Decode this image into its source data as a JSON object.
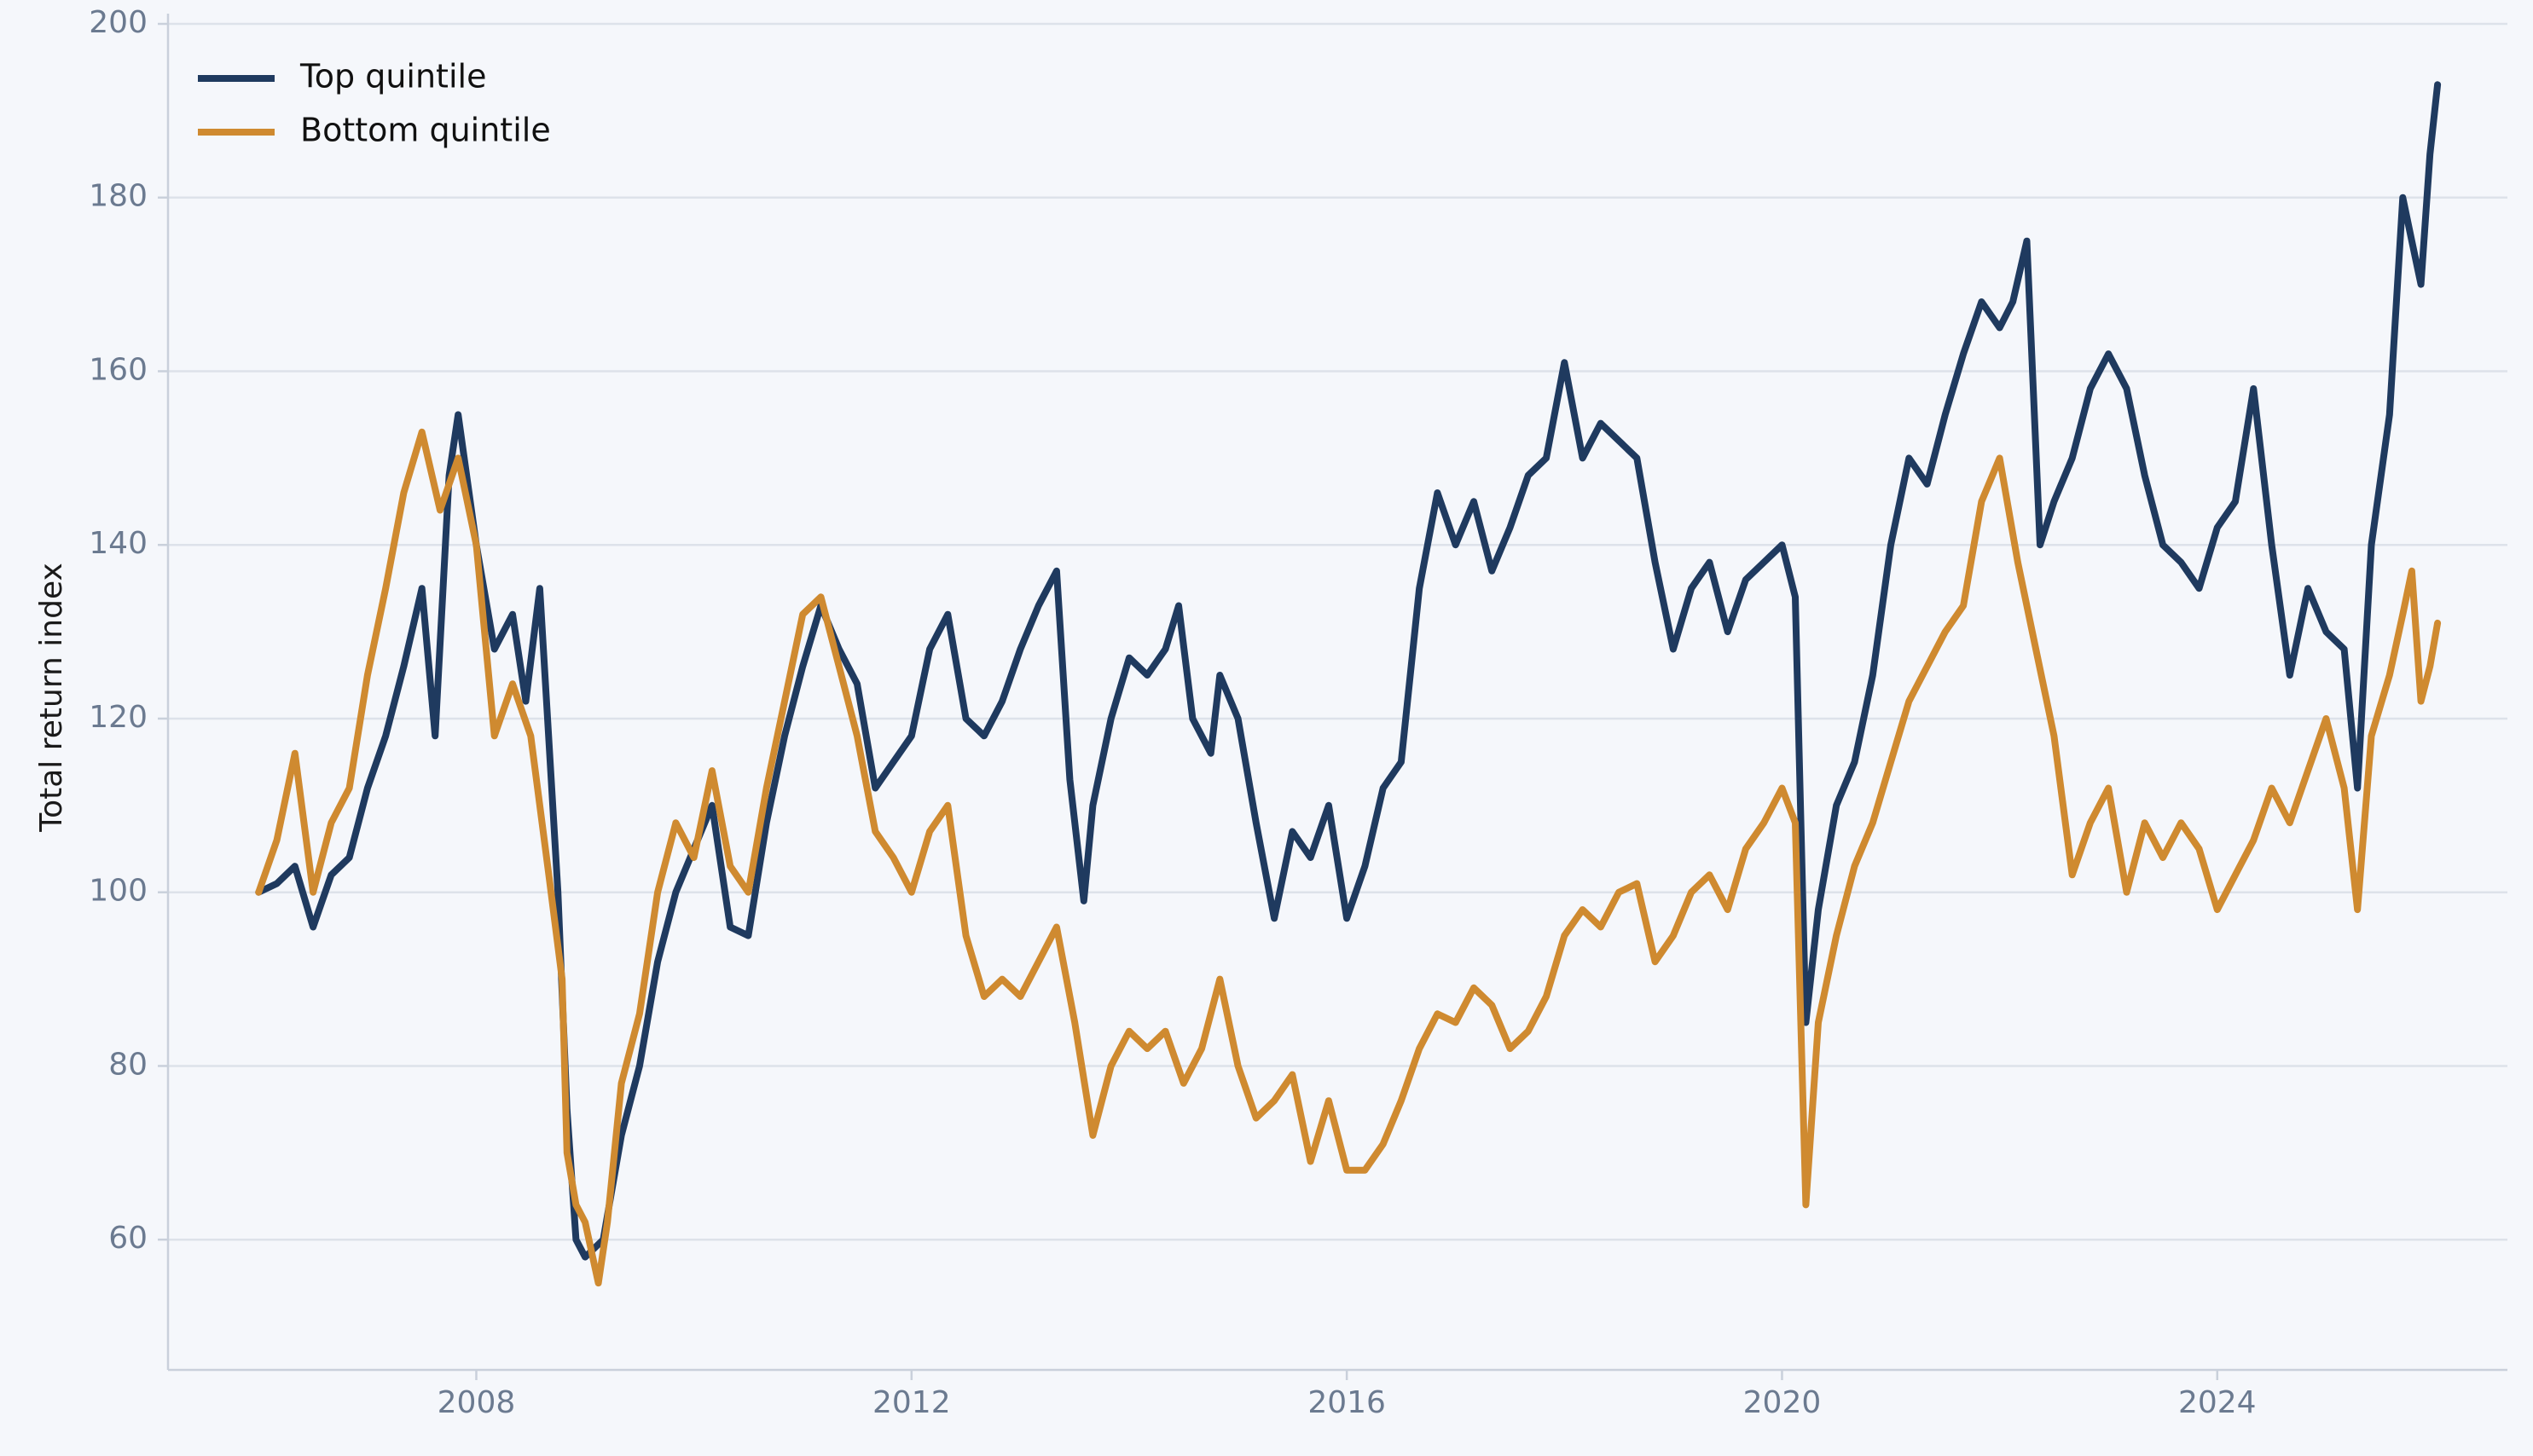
{
  "chart_data": {
    "type": "line",
    "title": "",
    "xlabel": "",
    "ylabel": "Total return index",
    "xlim": [
      "2005-03-01",
      "2026-09-01"
    ],
    "ylim": [
      45,
      200
    ],
    "x_ticks": [
      "2008",
      "2012",
      "2016",
      "2020",
      "2024"
    ],
    "y_ticks": [
      60,
      80,
      100,
      120,
      140,
      160,
      180,
      200
    ],
    "grid": "horizontal",
    "legend_position": "top-left",
    "series": [
      {
        "name": "Top quintile",
        "color": "#1f3a5f",
        "points": [
          [
            "2006-01-01",
            100
          ],
          [
            "2006-03-01",
            101
          ],
          [
            "2006-05-01",
            103
          ],
          [
            "2006-07-01",
            96
          ],
          [
            "2006-09-01",
            102
          ],
          [
            "2006-11-01",
            104
          ],
          [
            "2007-01-01",
            112
          ],
          [
            "2007-03-01",
            118
          ],
          [
            "2007-05-01",
            126
          ],
          [
            "2007-07-01",
            135
          ],
          [
            "2007-08-15",
            118
          ],
          [
            "2007-10-01",
            148
          ],
          [
            "2007-11-01",
            155
          ],
          [
            "2008-01-01",
            140
          ],
          [
            "2008-03-01",
            128
          ],
          [
            "2008-05-01",
            132
          ],
          [
            "2008-06-15",
            122
          ],
          [
            "2008-08-01",
            135
          ],
          [
            "2008-10-01",
            100
          ],
          [
            "2008-11-01",
            75
          ],
          [
            "2008-12-01",
            60
          ],
          [
            "2009-01-01",
            58
          ],
          [
            "2009-03-01",
            60
          ],
          [
            "2009-05-01",
            72
          ],
          [
            "2009-07-01",
            80
          ],
          [
            "2009-09-01",
            92
          ],
          [
            "2009-11-01",
            100
          ],
          [
            "2010-01-01",
            105
          ],
          [
            "2010-03-01",
            110
          ],
          [
            "2010-05-01",
            96
          ],
          [
            "2010-07-01",
            95
          ],
          [
            "2010-09-01",
            108
          ],
          [
            "2010-11-01",
            118
          ],
          [
            "2011-01-01",
            126
          ],
          [
            "2011-03-01",
            133
          ],
          [
            "2011-05-01",
            128
          ],
          [
            "2011-07-01",
            124
          ],
          [
            "2011-09-01",
            112
          ],
          [
            "2011-11-01",
            115
          ],
          [
            "2012-01-01",
            118
          ],
          [
            "2012-03-01",
            128
          ],
          [
            "2012-05-01",
            132
          ],
          [
            "2012-07-01",
            120
          ],
          [
            "2012-09-01",
            118
          ],
          [
            "2012-11-01",
            122
          ],
          [
            "2013-01-01",
            128
          ],
          [
            "2013-03-01",
            133
          ],
          [
            "2013-05-01",
            137
          ],
          [
            "2013-06-15",
            113
          ],
          [
            "2013-08-01",
            99
          ],
          [
            "2013-09-01",
            110
          ],
          [
            "2013-11-01",
            120
          ],
          [
            "2014-01-01",
            127
          ],
          [
            "2014-03-01",
            125
          ],
          [
            "2014-05-01",
            128
          ],
          [
            "2014-06-15",
            133
          ],
          [
            "2014-08-01",
            120
          ],
          [
            "2014-10-01",
            116
          ],
          [
            "2014-11-01",
            125
          ],
          [
            "2015-01-01",
            120
          ],
          [
            "2015-03-01",
            108
          ],
          [
            "2015-05-01",
            97
          ],
          [
            "2015-07-01",
            107
          ],
          [
            "2015-09-01",
            104
          ],
          [
            "2015-11-01",
            110
          ],
          [
            "2016-01-01",
            97
          ],
          [
            "2016-03-01",
            103
          ],
          [
            "2016-05-01",
            112
          ],
          [
            "2016-07-01",
            115
          ],
          [
            "2016-09-01",
            135
          ],
          [
            "2016-11-01",
            146
          ],
          [
            "2017-01-01",
            140
          ],
          [
            "2017-03-01",
            145
          ],
          [
            "2017-05-01",
            137
          ],
          [
            "2017-07-01",
            142
          ],
          [
            "2017-09-01",
            148
          ],
          [
            "2017-11-01",
            150
          ],
          [
            "2018-01-01",
            161
          ],
          [
            "2018-03-01",
            150
          ],
          [
            "2018-05-01",
            154
          ],
          [
            "2018-07-01",
            152
          ],
          [
            "2018-09-01",
            150
          ],
          [
            "2018-11-01",
            138
          ],
          [
            "2019-01-01",
            128
          ],
          [
            "2019-03-01",
            135
          ],
          [
            "2019-05-01",
            138
          ],
          [
            "2019-07-01",
            130
          ],
          [
            "2019-09-01",
            136
          ],
          [
            "2019-11-01",
            138
          ],
          [
            "2020-01-01",
            140
          ],
          [
            "2020-02-15",
            134
          ],
          [
            "2020-03-20",
            85
          ],
          [
            "2020-05-01",
            98
          ],
          [
            "2020-07-01",
            110
          ],
          [
            "2020-09-01",
            115
          ],
          [
            "2020-11-01",
            125
          ],
          [
            "2021-01-01",
            140
          ],
          [
            "2021-03-01",
            150
          ],
          [
            "2021-05-01",
            147
          ],
          [
            "2021-07-01",
            155
          ],
          [
            "2021-09-01",
            162
          ],
          [
            "2021-11-01",
            168
          ],
          [
            "2022-01-01",
            165
          ],
          [
            "2022-02-15",
            168
          ],
          [
            "2022-04-01",
            175
          ],
          [
            "2022-05-15",
            140
          ],
          [
            "2022-07-01",
            145
          ],
          [
            "2022-09-01",
            150
          ],
          [
            "2022-11-01",
            158
          ],
          [
            "2023-01-01",
            162
          ],
          [
            "2023-03-01",
            158
          ],
          [
            "2023-05-01",
            148
          ],
          [
            "2023-07-01",
            140
          ],
          [
            "2023-09-01",
            138
          ],
          [
            "2023-11-01",
            135
          ],
          [
            "2024-01-01",
            142
          ],
          [
            "2024-03-01",
            145
          ],
          [
            "2024-05-01",
            158
          ],
          [
            "2024-07-01",
            140
          ],
          [
            "2024-09-01",
            125
          ],
          [
            "2024-11-01",
            135
          ],
          [
            "2025-01-01",
            130
          ],
          [
            "2025-03-01",
            128
          ],
          [
            "2025-04-15",
            112
          ],
          [
            "2025-06-01",
            140
          ],
          [
            "2025-08-01",
            155
          ],
          [
            "2025-09-15",
            180
          ],
          [
            "2025-10-15",
            175
          ],
          [
            "2025-11-15",
            170
          ],
          [
            "2025-12-15",
            185
          ],
          [
            "2026-01-10",
            193
          ]
        ]
      },
      {
        "name": "Bottom quintile",
        "color": "#cf8a30",
        "points": [
          [
            "2006-01-01",
            100
          ],
          [
            "2006-03-01",
            106
          ],
          [
            "2006-05-01",
            116
          ],
          [
            "2006-07-01",
            100
          ],
          [
            "2006-09-01",
            108
          ],
          [
            "2006-11-01",
            112
          ],
          [
            "2007-01-01",
            125
          ],
          [
            "2007-03-01",
            135
          ],
          [
            "2007-05-01",
            146
          ],
          [
            "2007-07-01",
            153
          ],
          [
            "2007-09-01",
            144
          ],
          [
            "2007-11-01",
            150
          ],
          [
            "2008-01-01",
            140
          ],
          [
            "2008-03-01",
            118
          ],
          [
            "2008-05-01",
            124
          ],
          [
            "2008-07-01",
            118
          ],
          [
            "2008-09-01",
            102
          ],
          [
            "2008-10-15",
            90
          ],
          [
            "2008-11-01",
            70
          ],
          [
            "2008-12-01",
            64
          ],
          [
            "2009-01-01",
            62
          ],
          [
            "2009-02-15",
            55
          ],
          [
            "2009-03-15",
            62
          ],
          [
            "2009-05-01",
            78
          ],
          [
            "2009-07-01",
            86
          ],
          [
            "2009-09-01",
            100
          ],
          [
            "2009-11-01",
            108
          ],
          [
            "2010-01-01",
            104
          ],
          [
            "2010-03-01",
            114
          ],
          [
            "2010-05-01",
            103
          ],
          [
            "2010-07-01",
            100
          ],
          [
            "2010-09-01",
            112
          ],
          [
            "2010-11-01",
            122
          ],
          [
            "2011-01-01",
            132
          ],
          [
            "2011-03-01",
            134
          ],
          [
            "2011-05-01",
            126
          ],
          [
            "2011-07-01",
            118
          ],
          [
            "2011-09-01",
            107
          ],
          [
            "2011-11-01",
            104
          ],
          [
            "2012-01-01",
            100
          ],
          [
            "2012-03-01",
            107
          ],
          [
            "2012-05-01",
            110
          ],
          [
            "2012-07-01",
            95
          ],
          [
            "2012-09-01",
            88
          ],
          [
            "2012-11-01",
            90
          ],
          [
            "2013-01-01",
            88
          ],
          [
            "2013-03-01",
            92
          ],
          [
            "2013-05-01",
            96
          ],
          [
            "2013-07-01",
            85
          ],
          [
            "2013-09-01",
            72
          ],
          [
            "2013-11-01",
            80
          ],
          [
            "2014-01-01",
            84
          ],
          [
            "2014-03-01",
            82
          ],
          [
            "2014-05-01",
            84
          ],
          [
            "2014-07-01",
            78
          ],
          [
            "2014-09-01",
            82
          ],
          [
            "2014-11-01",
            90
          ],
          [
            "2015-01-01",
            80
          ],
          [
            "2015-03-01",
            74
          ],
          [
            "2015-05-01",
            76
          ],
          [
            "2015-07-01",
            79
          ],
          [
            "2015-09-01",
            69
          ],
          [
            "2015-11-01",
            76
          ],
          [
            "2016-01-01",
            68
          ],
          [
            "2016-03-01",
            68
          ],
          [
            "2016-05-01",
            71
          ],
          [
            "2016-07-01",
            76
          ],
          [
            "2016-09-01",
            82
          ],
          [
            "2016-11-01",
            86
          ],
          [
            "2017-01-01",
            85
          ],
          [
            "2017-03-01",
            89
          ],
          [
            "2017-05-01",
            87
          ],
          [
            "2017-07-01",
            82
          ],
          [
            "2017-09-01",
            84
          ],
          [
            "2017-11-01",
            88
          ],
          [
            "2018-01-01",
            95
          ],
          [
            "2018-03-01",
            98
          ],
          [
            "2018-05-01",
            96
          ],
          [
            "2018-07-01",
            100
          ],
          [
            "2018-09-01",
            101
          ],
          [
            "2018-11-01",
            92
          ],
          [
            "2019-01-01",
            95
          ],
          [
            "2019-03-01",
            100
          ],
          [
            "2019-05-01",
            102
          ],
          [
            "2019-07-01",
            98
          ],
          [
            "2019-09-01",
            105
          ],
          [
            "2019-11-01",
            108
          ],
          [
            "2020-01-01",
            112
          ],
          [
            "2020-02-15",
            108
          ],
          [
            "2020-03-20",
            64
          ],
          [
            "2020-05-01",
            85
          ],
          [
            "2020-07-01",
            95
          ],
          [
            "2020-09-01",
            103
          ],
          [
            "2020-11-01",
            108
          ],
          [
            "2021-01-01",
            115
          ],
          [
            "2021-03-01",
            122
          ],
          [
            "2021-05-01",
            126
          ],
          [
            "2021-07-01",
            130
          ],
          [
            "2021-09-01",
            133
          ],
          [
            "2021-11-01",
            145
          ],
          [
            "2022-01-01",
            150
          ],
          [
            "2022-03-01",
            138
          ],
          [
            "2022-05-01",
            128
          ],
          [
            "2022-07-01",
            118
          ],
          [
            "2022-09-01",
            102
          ],
          [
            "2022-11-01",
            108
          ],
          [
            "2023-01-01",
            112
          ],
          [
            "2023-03-01",
            100
          ],
          [
            "2023-05-01",
            108
          ],
          [
            "2023-07-01",
            104
          ],
          [
            "2023-09-01",
            108
          ],
          [
            "2023-11-01",
            105
          ],
          [
            "2024-01-01",
            98
          ],
          [
            "2024-03-01",
            102
          ],
          [
            "2024-05-01",
            106
          ],
          [
            "2024-07-01",
            112
          ],
          [
            "2024-09-01",
            108
          ],
          [
            "2024-11-01",
            114
          ],
          [
            "2025-01-01",
            120
          ],
          [
            "2025-03-01",
            112
          ],
          [
            "2025-04-15",
            98
          ],
          [
            "2025-06-01",
            118
          ],
          [
            "2025-08-01",
            125
          ],
          [
            "2025-09-15",
            132
          ],
          [
            "2025-10-15",
            137
          ],
          [
            "2025-11-15",
            122
          ],
          [
            "2025-12-15",
            126
          ],
          [
            "2026-01-10",
            131
          ]
        ]
      }
    ]
  }
}
